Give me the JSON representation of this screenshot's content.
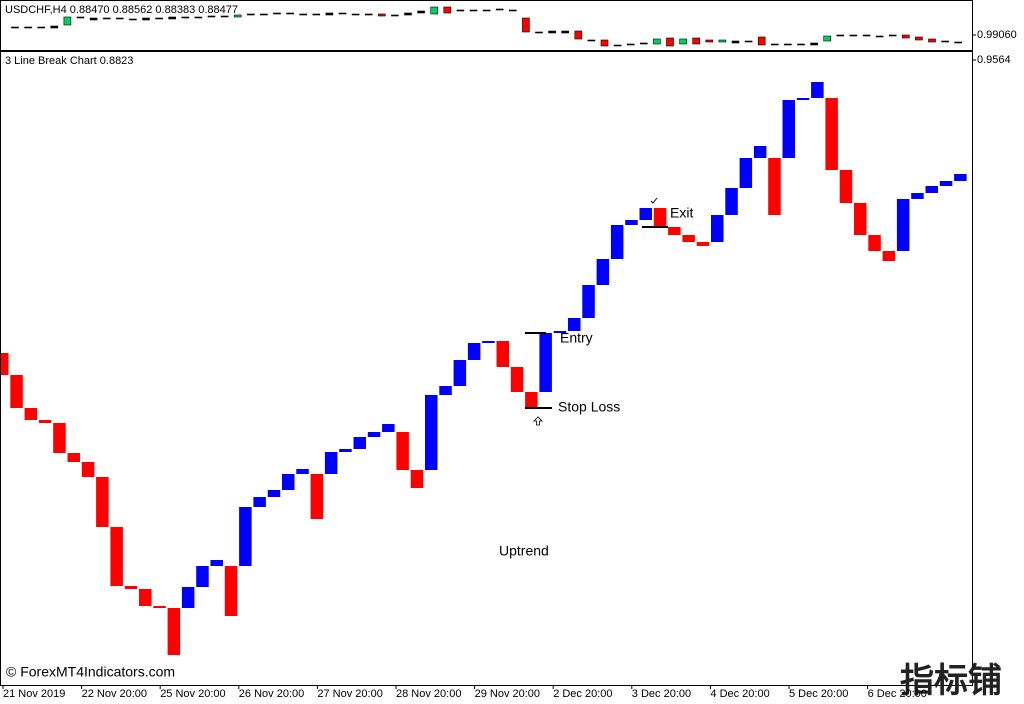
{
  "chart_data": [
    {
      "type": "candlestick",
      "title": "USDCHF,H4 0.88470 0.88562 0.88383 0.88477",
      "open": [
        0.992,
        0.9922,
        0.9922,
        0.992,
        0.9926,
        0.9942,
        0.994,
        0.994,
        0.9938,
        0.9938,
        0.9936,
        0.994,
        0.9938,
        0.9942,
        0.994,
        0.9942,
        0.9944,
        0.9942,
        0.9946,
        0.9948,
        0.9948,
        0.995,
        0.9948,
        0.9948,
        0.9946,
        0.995,
        0.9948,
        0.9946,
        0.9948,
        0.9944,
        0.9946,
        0.995,
        0.9948,
        0.9962,
        0.9956,
        0.9954,
        0.9956,
        0.9956,
        0.9954,
        0.994,
        0.9912,
        0.991,
        0.9914,
        0.9914,
        0.9896,
        0.9896,
        0.9886,
        0.9886,
        0.9888,
        0.9888,
        0.99,
        0.9888,
        0.99,
        0.9896,
        0.9892,
        0.9894,
        0.9892,
        0.9902,
        0.9888,
        0.9886,
        0.9888,
        0.989,
        0.9894,
        0.9904,
        0.9906,
        0.9904,
        0.9904,
        0.9904,
        0.9906,
        0.9902,
        0.9898,
        0.9894,
        0.9892
      ],
      "close": [
        0.9922,
        0.992,
        0.9922,
        0.9924,
        0.9942,
        0.994,
        0.9936,
        0.9938,
        0.994,
        0.9936,
        0.994,
        0.9938,
        0.9942,
        0.994,
        0.9942,
        0.9944,
        0.9942,
        0.9946,
        0.9948,
        0.9946,
        0.995,
        0.9948,
        0.9948,
        0.9946,
        0.995,
        0.9948,
        0.9946,
        0.9948,
        0.9944,
        0.9946,
        0.995,
        0.9954,
        0.9962,
        0.995,
        0.9954,
        0.9956,
        0.9954,
        0.9958,
        0.9956,
        0.9912,
        0.991,
        0.9914,
        0.991,
        0.9898,
        0.9894,
        0.9884,
        0.9884,
        0.9888,
        0.989,
        0.9898,
        0.9884,
        0.9898,
        0.9888,
        0.9892,
        0.9896,
        0.989,
        0.9894,
        0.9886,
        0.9886,
        0.9888,
        0.9886,
        0.9886,
        0.9904,
        0.9906,
        0.9904,
        0.9906,
        0.9902,
        0.9906,
        0.99,
        0.9896,
        0.9892,
        0.9892,
        0.989
      ],
      "ylim": [
        0.9876,
        0.997
      ],
      "yticks": [
        {
          "value": 0.9906,
          "label": "0.99060"
        }
      ],
      "up_color": "#00d060",
      "down_color": "#ff0000"
    },
    {
      "type": "line_break",
      "title": "3 Line Break Chart 0.8823",
      "open": [
        0.9271,
        0.9249,
        0.9216,
        0.9204,
        0.9201,
        0.9171,
        0.9162,
        0.9147,
        0.9097,
        0.9038,
        0.9035,
        0.9018,
        0.9016,
        0.9016,
        0.9037,
        0.9058,
        0.9058,
        0.9058,
        0.9117,
        0.9127,
        0.9134,
        0.915,
        0.915,
        0.915,
        0.9172,
        0.9175,
        0.9187,
        0.9192,
        0.9192,
        0.9154,
        0.9154,
        0.9229,
        0.9238,
        0.9264,
        0.9281,
        0.9283,
        0.9257,
        0.9232,
        0.9232,
        0.9291,
        0.9293,
        0.9306,
        0.9339,
        0.9365,
        0.9399,
        0.9404,
        0.9416,
        0.9397,
        0.9389,
        0.9382,
        0.9382,
        0.9409,
        0.9436,
        0.9466,
        0.9466,
        0.9466,
        0.9524,
        0.9526,
        0.9526,
        0.9454,
        0.9421,
        0.9389,
        0.9373,
        0.9373,
        0.9425,
        0.9431,
        0.9438,
        0.9443
      ],
      "close": [
        0.9249,
        0.9216,
        0.9204,
        0.9201,
        0.9171,
        0.9162,
        0.9147,
        0.9097,
        0.9038,
        0.9035,
        0.9018,
        0.9016,
        0.8969,
        0.9037,
        0.9058,
        0.9064,
        0.9008,
        0.9117,
        0.9127,
        0.9134,
        0.915,
        0.9155,
        0.9105,
        0.9172,
        0.9175,
        0.9187,
        0.9192,
        0.92,
        0.9154,
        0.9136,
        0.9229,
        0.9238,
        0.9264,
        0.9281,
        0.9283,
        0.9257,
        0.9232,
        0.9217,
        0.9291,
        0.9293,
        0.9306,
        0.9339,
        0.9365,
        0.9399,
        0.9404,
        0.9416,
        0.9397,
        0.9389,
        0.9382,
        0.9378,
        0.9409,
        0.9436,
        0.9466,
        0.9478,
        0.9409,
        0.9524,
        0.9526,
        0.9542,
        0.9454,
        0.9421,
        0.9389,
        0.9373,
        0.9363,
        0.9425,
        0.9431,
        0.9438,
        0.9443,
        0.945
      ],
      "ylim": [
        0.8939,
        0.9572
      ],
      "yticks": [
        0.9564
      ],
      "up_color": "#0000ff",
      "down_color": "#ff0000",
      "categories": [
        "21 Nov 2019",
        "22 Nov 20:00",
        "25 Nov 20:00",
        "26 Nov 20:00",
        "27 Nov 20:00",
        "28 Nov 20:00",
        "29 Nov 20:00",
        "2 Dec 20:00",
        "3 Dec 20:00",
        "4 Dec 20:00",
        "5 Dec 20:00",
        "6 Dec 20:00"
      ],
      "annotations": {
        "entry": "Entry",
        "stop_loss": "Stop Loss",
        "exit": "Exit",
        "trend": "Uptrend"
      }
    }
  ],
  "watermark": "© ForexMT4Indicators.com",
  "logo": "指标铺"
}
